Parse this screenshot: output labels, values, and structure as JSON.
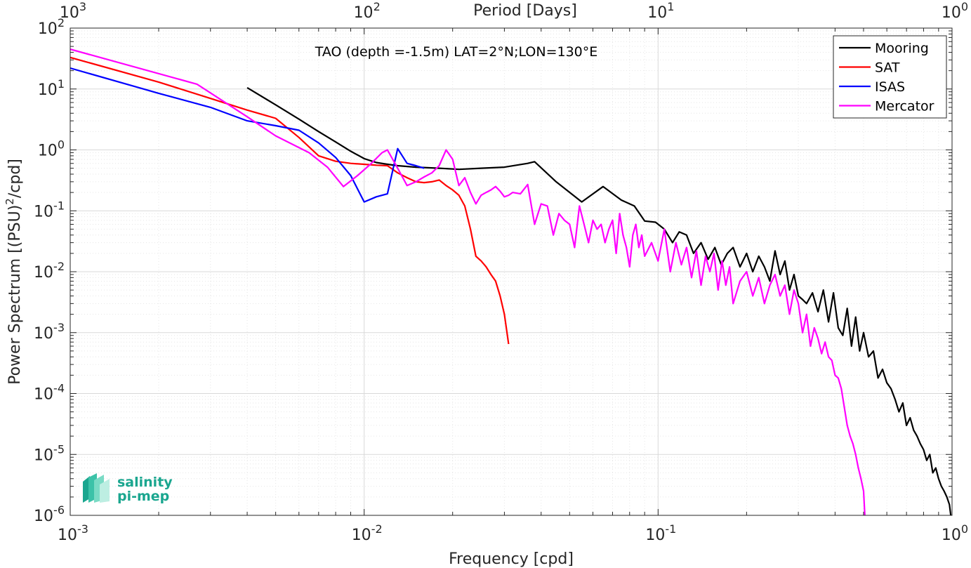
{
  "chart_data": {
    "type": "line",
    "title": "TAO (depth =-1.5m) LAT=2°N;LON=130°E",
    "xlabel": "Frequency [cpd]",
    "ylabel": "Power Spectrum [(PSU)²/cpd]",
    "ylabel_parts": {
      "main": "Power Spectrum [(PSU)",
      "sup": "2",
      "tail": "/cpd]"
    },
    "top_xlabel": "Period [Days]",
    "x_scale": "log",
    "y_scale": "log",
    "xlim": [
      0.001,
      1
    ],
    "ylim": [
      1e-06,
      100
    ],
    "grid": true,
    "minor_grid": true,
    "legend_position": "top-right",
    "x_ticks": [
      {
        "value": 0.001,
        "base": "10",
        "exp": "-3"
      },
      {
        "value": 0.01,
        "base": "10",
        "exp": "-2"
      },
      {
        "value": 0.1,
        "base": "10",
        "exp": "-1"
      },
      {
        "value": 1,
        "base": "10",
        "exp": "0"
      }
    ],
    "top_ticks": [
      {
        "value": 0.001,
        "base": "10",
        "exp": "3"
      },
      {
        "value": 0.01,
        "base": "10",
        "exp": "2"
      },
      {
        "value": 0.1,
        "base": "10",
        "exp": "1"
      },
      {
        "value": 1,
        "base": "10",
        "exp": "0"
      }
    ],
    "y_ticks": [
      {
        "value": 100,
        "base": "10",
        "exp": "2"
      },
      {
        "value": 10,
        "base": "10",
        "exp": "1"
      },
      {
        "value": 1,
        "base": "10",
        "exp": "0"
      },
      {
        "value": 0.1,
        "base": "10",
        "exp": "-1"
      },
      {
        "value": 0.01,
        "base": "10",
        "exp": "-2"
      },
      {
        "value": 0.001,
        "base": "10",
        "exp": "-3"
      },
      {
        "value": 0.0001,
        "base": "10",
        "exp": "-4"
      },
      {
        "value": 1e-05,
        "base": "10",
        "exp": "-5"
      },
      {
        "value": 1e-06,
        "base": "10",
        "exp": "-6"
      }
    ],
    "series": [
      {
        "name": "Mooring",
        "color": "#000000",
        "x": [
          0.004,
          0.005,
          0.006,
          0.007,
          0.008,
          0.009,
          0.01,
          0.011,
          0.012,
          0.013,
          0.015,
          0.018,
          0.021,
          0.025,
          0.03,
          0.036,
          0.038,
          0.045,
          0.055,
          0.065,
          0.075,
          0.083,
          0.09,
          0.098,
          0.105,
          0.112,
          0.118,
          0.125,
          0.132,
          0.14,
          0.148,
          0.156,
          0.164,
          0.172,
          0.18,
          0.19,
          0.2,
          0.21,
          0.22,
          0.23,
          0.24,
          0.25,
          0.26,
          0.27,
          0.28,
          0.29,
          0.3,
          0.31,
          0.32,
          0.335,
          0.35,
          0.365,
          0.38,
          0.395,
          0.41,
          0.425,
          0.44,
          0.455,
          0.47,
          0.485,
          0.5,
          0.52,
          0.54,
          0.56,
          0.58,
          0.6,
          0.62,
          0.64,
          0.66,
          0.68,
          0.7,
          0.72,
          0.74,
          0.76,
          0.78,
          0.8,
          0.82,
          0.84,
          0.86,
          0.88,
          0.9,
          0.92,
          0.94,
          0.96,
          0.98,
          0.99
        ],
        "y": [
          10.5,
          5.5,
          3.2,
          2.0,
          1.35,
          0.95,
          0.72,
          0.62,
          0.58,
          0.55,
          0.52,
          0.5,
          0.48,
          0.5,
          0.52,
          0.6,
          0.64,
          0.3,
          0.14,
          0.25,
          0.15,
          0.12,
          0.068,
          0.065,
          0.05,
          0.03,
          0.045,
          0.04,
          0.02,
          0.03,
          0.016,
          0.025,
          0.013,
          0.02,
          0.025,
          0.012,
          0.02,
          0.01,
          0.018,
          0.012,
          0.007,
          0.022,
          0.009,
          0.015,
          0.005,
          0.009,
          0.004,
          0.0035,
          0.003,
          0.0045,
          0.0022,
          0.005,
          0.0015,
          0.0045,
          0.0012,
          0.0009,
          0.0025,
          0.0006,
          0.0018,
          0.0005,
          0.001,
          0.0004,
          0.0005,
          0.00018,
          0.00025,
          0.00015,
          0.00012,
          8e-05,
          5e-05,
          7e-05,
          3e-05,
          4e-05,
          2.5e-05,
          2e-05,
          1.5e-05,
          1.2e-05,
          8e-06,
          1e-05,
          5e-06,
          6e-06,
          4e-06,
          3e-06,
          2.5e-06,
          2e-06,
          1.5e-06,
          1e-06
        ]
      },
      {
        "name": "SAT",
        "color": "#ff0000",
        "x": [
          0.001,
          0.002,
          0.003,
          0.004,
          0.005,
          0.006,
          0.007,
          0.008,
          0.009,
          0.01,
          0.011,
          0.012,
          0.013,
          0.014,
          0.015,
          0.016,
          0.017,
          0.018,
          0.019,
          0.02,
          0.021,
          0.022,
          0.023,
          0.024,
          0.025,
          0.026,
          0.027,
          0.028,
          0.029,
          0.03,
          0.031
        ],
        "y": [
          33,
          13,
          7,
          4.5,
          3.3,
          1.6,
          0.8,
          0.65,
          0.6,
          0.58,
          0.56,
          0.55,
          0.42,
          0.35,
          0.3,
          0.29,
          0.3,
          0.32,
          0.26,
          0.22,
          0.18,
          0.12,
          0.05,
          0.018,
          0.015,
          0.012,
          0.009,
          0.007,
          0.004,
          0.002,
          0.00065
        ]
      },
      {
        "name": "ISAS",
        "color": "#0000ff",
        "x": [
          0.001,
          0.002,
          0.003,
          0.004,
          0.005,
          0.006,
          0.007,
          0.008,
          0.009,
          0.01,
          0.011,
          0.012,
          0.013,
          0.014,
          0.015,
          0.016
        ],
        "y": [
          22,
          8.5,
          5.0,
          3.0,
          2.5,
          2.1,
          1.3,
          0.75,
          0.38,
          0.14,
          0.17,
          0.19,
          1.05,
          0.6,
          0.55,
          0.5
        ]
      },
      {
        "name": "Mercator",
        "color": "#ff00ff",
        "x": [
          0.001,
          0.0027,
          0.004,
          0.005,
          0.0065,
          0.0075,
          0.0085,
          0.0095,
          0.0105,
          0.0115,
          0.012,
          0.013,
          0.014,
          0.015,
          0.016,
          0.017,
          0.018,
          0.019,
          0.02,
          0.021,
          0.022,
          0.023,
          0.024,
          0.025,
          0.026,
          0.027,
          0.028,
          0.029,
          0.03,
          0.031,
          0.032,
          0.034,
          0.036,
          0.038,
          0.04,
          0.042,
          0.044,
          0.046,
          0.048,
          0.05,
          0.052,
          0.054,
          0.056,
          0.058,
          0.06,
          0.062,
          0.064,
          0.066,
          0.068,
          0.07,
          0.072,
          0.074,
          0.076,
          0.078,
          0.08,
          0.082,
          0.084,
          0.086,
          0.088,
          0.09,
          0.095,
          0.1,
          0.105,
          0.11,
          0.115,
          0.12,
          0.125,
          0.13,
          0.135,
          0.14,
          0.145,
          0.15,
          0.155,
          0.16,
          0.165,
          0.17,
          0.175,
          0.18,
          0.19,
          0.2,
          0.21,
          0.22,
          0.23,
          0.24,
          0.25,
          0.26,
          0.27,
          0.28,
          0.29,
          0.3,
          0.31,
          0.32,
          0.33,
          0.34,
          0.35,
          0.36,
          0.37,
          0.38,
          0.39,
          0.4,
          0.41,
          0.42,
          0.43,
          0.44,
          0.45,
          0.46,
          0.47,
          0.48,
          0.49,
          0.5,
          0.505
        ],
        "y": [
          45,
          12,
          3.5,
          1.7,
          0.9,
          0.52,
          0.25,
          0.38,
          0.58,
          0.9,
          1.0,
          0.5,
          0.26,
          0.3,
          0.36,
          0.42,
          0.55,
          1.0,
          0.7,
          0.26,
          0.35,
          0.2,
          0.13,
          0.18,
          0.2,
          0.22,
          0.25,
          0.21,
          0.17,
          0.18,
          0.2,
          0.19,
          0.27,
          0.06,
          0.13,
          0.12,
          0.04,
          0.09,
          0.07,
          0.06,
          0.025,
          0.12,
          0.06,
          0.03,
          0.07,
          0.05,
          0.06,
          0.03,
          0.05,
          0.07,
          0.02,
          0.09,
          0.04,
          0.025,
          0.012,
          0.04,
          0.06,
          0.025,
          0.04,
          0.018,
          0.03,
          0.015,
          0.05,
          0.01,
          0.03,
          0.013,
          0.025,
          0.008,
          0.022,
          0.006,
          0.018,
          0.01,
          0.02,
          0.005,
          0.015,
          0.006,
          0.012,
          0.003,
          0.007,
          0.01,
          0.004,
          0.008,
          0.003,
          0.006,
          0.009,
          0.004,
          0.006,
          0.002,
          0.005,
          0.003,
          0.001,
          0.002,
          0.0006,
          0.0012,
          0.0008,
          0.00045,
          0.0007,
          0.0004,
          0.00035,
          0.0002,
          0.00018,
          0.00012,
          6e-05,
          3e-05,
          2e-05,
          1.5e-05,
          1e-05,
          6e-06,
          4e-06,
          2.5e-06,
          1e-06
        ]
      }
    ]
  },
  "logo": {
    "line1": "salinity",
    "line2": "pi-mep",
    "colors": [
      "#1aa68f",
      "#3cc2a8",
      "#7adbc5",
      "#bdeee2"
    ]
  }
}
